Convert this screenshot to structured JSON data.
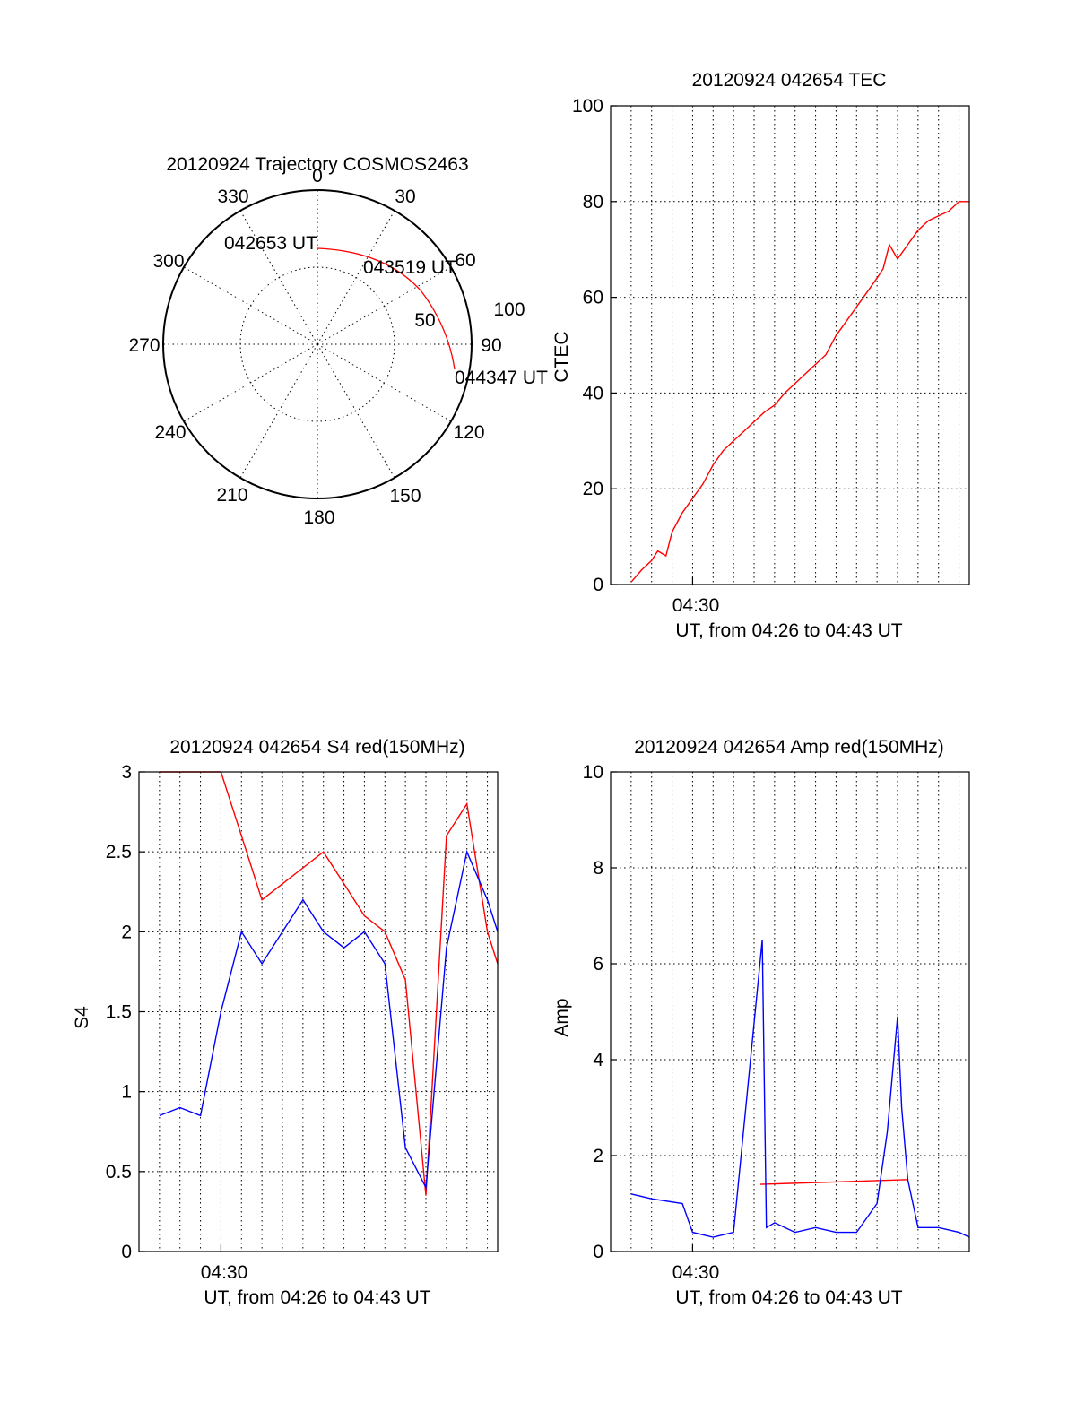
{
  "chart_data": [
    {
      "id": "trajectory",
      "type": "polar",
      "title": "20120924 Trajectory COSMOS2463",
      "azimuth_labels": [
        "0",
        "30",
        "60",
        "90",
        "120",
        "150",
        "180",
        "210",
        "240",
        "270",
        "300",
        "330"
      ],
      "elevation_ring_labels": [
        "50",
        "100"
      ],
      "track_color": "#ff0000",
      "points": [
        {
          "label": "042653 UT",
          "az": 0,
          "elev": 20
        },
        {
          "label": "043519 UT",
          "az": 38,
          "elev": 30
        },
        {
          "label": "044347 UT",
          "az": 103,
          "elev": 14
        }
      ]
    },
    {
      "id": "tec",
      "type": "line",
      "title": "20120924 042654 TEC",
      "xlabel": "UT, from 04:26 to 04:43 UT",
      "ylabel": "CTEC",
      "xtick_label": "04:30",
      "xlim": [
        26.0,
        43.5
      ],
      "ylim": [
        0,
        100
      ],
      "yticks": [
        "0",
        "20",
        "40",
        "60",
        "80",
        "100"
      ],
      "grid": true,
      "series": [
        {
          "color": "#ff0000",
          "x": [
            27.0,
            27.5,
            28.0,
            28.3,
            28.7,
            29.0,
            29.5,
            30.0,
            30.5,
            31.0,
            31.5,
            32.0,
            32.5,
            33.0,
            33.5,
            34.0,
            34.5,
            35.0,
            35.5,
            36.0,
            36.5,
            37.0,
            37.5,
            38.0,
            38.5,
            39.0,
            39.3,
            39.6,
            40.0,
            40.5,
            41.0,
            41.5,
            42.0,
            42.5,
            43.0,
            43.5
          ],
          "y": [
            0.5,
            3,
            5,
            7,
            6,
            11,
            15,
            18,
            21,
            25,
            28,
            30,
            32,
            34,
            36,
            37.5,
            40,
            42,
            44,
            46,
            48,
            52,
            55,
            58,
            61,
            64,
            66,
            71,
            68,
            71,
            74,
            76,
            77,
            78,
            80,
            80
          ]
        }
      ]
    },
    {
      "id": "s4",
      "type": "line",
      "title": "20120924 042654 S4 red(150MHz)",
      "xlabel": "UT, from 04:26 to 04:43 UT",
      "ylabel": "S4",
      "xtick_label": "04:30",
      "xlim": [
        26.0,
        43.5
      ],
      "ylim": [
        0,
        3
      ],
      "yticks": [
        "0",
        "0.5",
        "1",
        "1.5",
        "2",
        "2.5",
        "3"
      ],
      "grid": true,
      "series": [
        {
          "color": "#ff0000",
          "x": [
            27.0,
            28.0,
            29.0,
            30.0,
            31.0,
            32.0,
            33.0,
            34.0,
            35.0,
            36.0,
            37.0,
            38.0,
            39.0,
            40.0,
            41.0,
            42.0,
            43.0,
            43.5
          ],
          "y": [
            3,
            3,
            3,
            3,
            2.6,
            2.2,
            2.3,
            2.4,
            2.5,
            2.3,
            2.1,
            2.0,
            1.7,
            0.35,
            2.6,
            2.8,
            2.0,
            1.8
          ]
        },
        {
          "color": "#0000ff",
          "x": [
            27.0,
            28.0,
            29.0,
            30.0,
            31.0,
            32.0,
            33.0,
            34.0,
            35.0,
            36.0,
            37.0,
            38.0,
            39.0,
            40.0,
            41.0,
            42.0,
            43.0,
            43.5
          ],
          "y": [
            0.85,
            0.9,
            0.85,
            1.5,
            2.0,
            1.8,
            2.0,
            2.2,
            2.0,
            1.9,
            2.0,
            1.8,
            0.65,
            0.4,
            1.9,
            2.5,
            2.2,
            2.0
          ]
        }
      ]
    },
    {
      "id": "amp",
      "type": "line",
      "title": "20120924 042654 Amp red(150MHz)",
      "xlabel": "UT, from 04:26 to 04:43 UT",
      "ylabel": "Amp",
      "xtick_label": "04:30",
      "xlim": [
        26.0,
        43.5
      ],
      "ylim": [
        0,
        10
      ],
      "yticks": [
        "0",
        "2",
        "4",
        "6",
        "8",
        "10"
      ],
      "grid": true,
      "series": [
        {
          "color": "#ff0000",
          "x": [
            33.3,
            40.5
          ],
          "y": [
            1.4,
            1.5
          ]
        },
        {
          "color": "#0000ff",
          "x": [
            27.0,
            28.0,
            29.5,
            30.0,
            31.0,
            32.0,
            33.4,
            33.6,
            34.0,
            35.0,
            36.0,
            37.0,
            38.0,
            39.0,
            39.5,
            40.0,
            40.2,
            40.5,
            41.0,
            42.0,
            43.0,
            43.5
          ],
          "y": [
            1.2,
            1.1,
            1.0,
            0.4,
            0.3,
            0.4,
            6.5,
            0.5,
            0.6,
            0.4,
            0.5,
            0.4,
            0.4,
            1.0,
            2.5,
            4.9,
            3.0,
            1.5,
            0.5,
            0.5,
            0.4,
            0.3
          ]
        }
      ]
    }
  ]
}
